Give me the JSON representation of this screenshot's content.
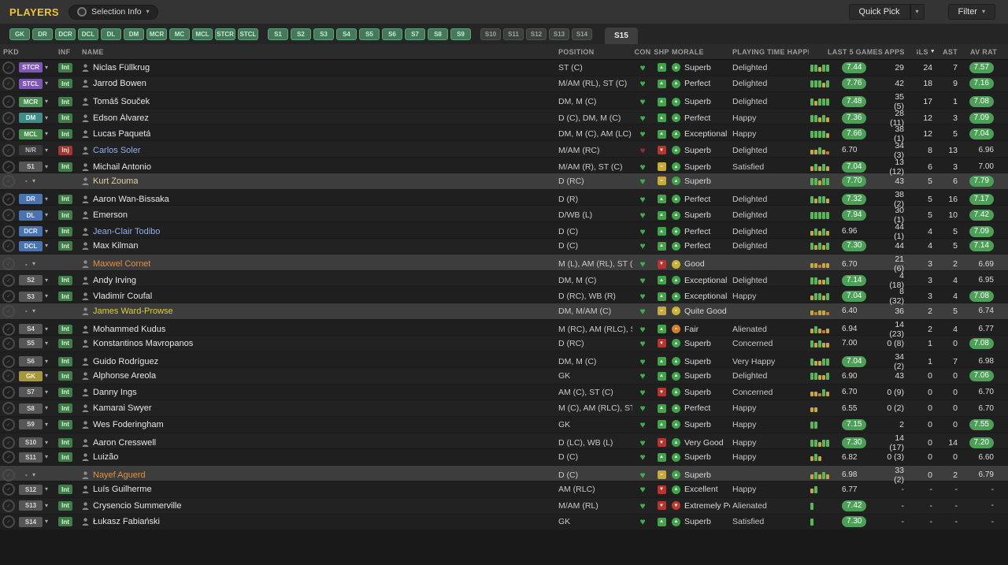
{
  "icons": {
    "caret": "▾",
    "check": "✓",
    "heart": "♥"
  },
  "colors": {
    "title_yellow": "#f2c230",
    "accent_green": "#4c9f56",
    "bar_green": "#58b858",
    "bar_yellow": "#c9a83c",
    "bar_orange": "#cc7a33",
    "heart_green": "#3fae4c",
    "heart_red": "#8f2f2f",
    "morale_green": "#3fa548",
    "morale_yellow": "#c9b236",
    "morale_orange": "#d08030",
    "morale_red": "#c03a2e"
  },
  "topbar": {
    "title": "PLAYERS",
    "selection_info": "Selection Info",
    "quick_pick": "Quick Pick",
    "filter": "Filter"
  },
  "tabs": {
    "positions": [
      "GK",
      "DR",
      "DCR",
      "DCL",
      "DL",
      "DM",
      "MCR",
      "MC",
      "MCL",
      "STCR",
      "STCL"
    ],
    "subs_active": [
      "S1",
      "S2",
      "S3",
      "S4",
      "S5",
      "S6",
      "S7",
      "S8",
      "S9"
    ],
    "subs_inactive": [
      "S10",
      "S11",
      "S12",
      "S13",
      "S14"
    ],
    "corner": "S15"
  },
  "table": {
    "sort_arrow": "▼",
    "columns": [
      {
        "label": "PKD"
      },
      {
        "label": "INF"
      },
      {
        "label": "NAME"
      },
      {
        "label": "POSITION"
      },
      {
        "label": "CON"
      },
      {
        "label": "SHP"
      },
      {
        "label": "MORALE"
      },
      {
        "label": "PLAYING TIME HAPPINESS"
      },
      {
        "label": "LAST 5 GAMES"
      },
      {
        "label": "APPS"
      },
      {
        "label": "GLS",
        "sorted": true
      },
      {
        "label": "AST"
      },
      {
        "label": "AV RAT"
      }
    ]
  },
  "players": [
    {
      "pkd": "STCR",
      "pkd_style": "purple",
      "inf": "Int",
      "inf_style": "g",
      "name": "Niclas Füllkrug",
      "name_style": "normal",
      "position": "ST (C)",
      "con": "g",
      "shp": "up",
      "morale": "Superb",
      "morale_style": "pos",
      "pth": "Delighted",
      "l5_bars": [
        "g",
        "g",
        "y",
        "g",
        "g"
      ],
      "l5": "7.44",
      "apps": "29",
      "gls": "24",
      "ast": "7",
      "av": "7.57",
      "hl": false
    },
    {
      "pkd": "STCL",
      "pkd_style": "purple",
      "inf": "Int",
      "inf_style": "g",
      "name": "Jarrod Bowen",
      "name_style": "normal",
      "position": "M/AM (RL), ST (C)",
      "con": "g",
      "shp": "up",
      "morale": "Perfect",
      "morale_style": "pos",
      "pth": "Delighted",
      "l5_bars": [
        "g",
        "g",
        "g",
        "y",
        "g"
      ],
      "l5": "7.76",
      "apps": "42",
      "gls": "18",
      "ast": "9",
      "av": "7.16",
      "hl": false
    },
    {
      "pkd": "MCR",
      "pkd_style": "green",
      "inf": "Int",
      "inf_style": "g",
      "name": "Tomáš Souček",
      "name_style": "normal",
      "position": "DM, M (C)",
      "con": "g",
      "shp": "up",
      "morale": "Superb",
      "morale_style": "pos",
      "pth": "Delighted",
      "l5_bars": [
        "g",
        "y",
        "g",
        "g",
        "g"
      ],
      "l5": "7.48",
      "apps": "35 (5)",
      "gls": "17",
      "ast": "1",
      "av": "7.08",
      "hl": false
    },
    {
      "pkd": "DM",
      "pkd_style": "teal",
      "inf": "Int",
      "inf_style": "g",
      "name": "Edson Álvarez",
      "name_style": "normal",
      "position": "D (C), DM, M (C)",
      "con": "g",
      "shp": "up",
      "morale": "Perfect",
      "morale_style": "pos",
      "pth": "Happy",
      "l5_bars": [
        "g",
        "g",
        "y",
        "g",
        "y"
      ],
      "l5": "7.36",
      "apps": "28 (11)",
      "gls": "12",
      "ast": "3",
      "av": "7.09",
      "hl": false
    },
    {
      "pkd": "MCL",
      "pkd_style": "green",
      "inf": "Int",
      "inf_style": "g",
      "name": "Lucas Paquetá",
      "name_style": "normal",
      "position": "DM, M (C), AM (LC)",
      "con": "g",
      "shp": "up",
      "morale": "Exceptional",
      "morale_style": "pos",
      "pth": "Happy",
      "l5_bars": [
        "g",
        "g",
        "g",
        "g",
        "y"
      ],
      "l5": "7.66",
      "apps": "38 (1)",
      "gls": "12",
      "ast": "5",
      "av": "7.04",
      "hl": false
    },
    {
      "pkd": "N/R",
      "pkd_style": "nr",
      "inf": "Inj",
      "inf_style": "r",
      "name": "Carlos Soler",
      "name_style": "loan",
      "position": "M/AM (RC)",
      "con": "r",
      "shp": "down",
      "morale": "Superb",
      "morale_style": "pos",
      "pth": "Delighted",
      "l5_bars": [
        "y",
        "y",
        "g",
        "y",
        "o"
      ],
      "l5": "6.70",
      "apps": "34 (3)",
      "gls": "8",
      "ast": "13",
      "av": "6.96",
      "hl": false
    },
    {
      "pkd": "S1",
      "pkd_style": "sub",
      "inf": "Int",
      "inf_style": "g",
      "name": "Michail Antonio",
      "name_style": "normal",
      "position": "M/AM (R), ST (C)",
      "con": "g",
      "shp": "eq",
      "morale": "Superb",
      "morale_style": "pos",
      "pth": "Satisfied",
      "l5_bars": [
        "y",
        "g",
        "y",
        "g",
        "y"
      ],
      "l5": "7.04",
      "apps": "13 (12)",
      "gls": "6",
      "ast": "3",
      "av": "7.00",
      "hl": false
    },
    {
      "pkd": "-",
      "pkd_style": "none",
      "inf": "",
      "inf_style": "",
      "name": "Kurt Zouma",
      "name_style": "peach",
      "position": "D (RC)",
      "con": "g",
      "shp": "eq",
      "morale": "Superb",
      "morale_style": "pos",
      "pth": "",
      "l5_bars": [
        "g",
        "g",
        "y",
        "g",
        "g"
      ],
      "l5": "7.70",
      "apps": "43",
      "gls": "5",
      "ast": "6",
      "av": "7.79",
      "hl": true
    },
    {
      "pkd": "DR",
      "pkd_style": "blue",
      "inf": "Int",
      "inf_style": "g",
      "name": "Aaron Wan-Bissaka",
      "name_style": "normal",
      "position": "D (R)",
      "con": "g",
      "shp": "up",
      "morale": "Perfect",
      "morale_style": "pos",
      "pth": "Delighted",
      "l5_bars": [
        "g",
        "y",
        "g",
        "g",
        "y"
      ],
      "l5": "7.32",
      "apps": "38 (2)",
      "gls": "5",
      "ast": "16",
      "av": "7.17",
      "hl": false
    },
    {
      "pkd": "DL",
      "pkd_style": "blue",
      "inf": "Int",
      "inf_style": "g",
      "name": "Emerson",
      "name_style": "normal",
      "position": "D/WB (L)",
      "con": "g",
      "shp": "up",
      "morale": "Superb",
      "morale_style": "pos",
      "pth": "Delighted",
      "l5_bars": [
        "g",
        "g",
        "g",
        "g",
        "g"
      ],
      "l5": "7.94",
      "apps": "30 (1)",
      "gls": "5",
      "ast": "10",
      "av": "7.42",
      "hl": false
    },
    {
      "pkd": "DCR",
      "pkd_style": "blue",
      "inf": "Int",
      "inf_style": "g",
      "name": "Jean-Clair Todibo",
      "name_style": "loan",
      "position": "D (C)",
      "con": "g",
      "shp": "up",
      "morale": "Perfect",
      "morale_style": "pos",
      "pth": "Delighted",
      "l5_bars": [
        "y",
        "g",
        "y",
        "g",
        "y"
      ],
      "l5": "6.96",
      "apps": "44 (1)",
      "gls": "4",
      "ast": "5",
      "av": "7.09",
      "hl": false
    },
    {
      "pkd": "DCL",
      "pkd_style": "blue",
      "inf": "Int",
      "inf_style": "g",
      "name": "Max Kilman",
      "name_style": "normal",
      "position": "D (C)",
      "con": "g",
      "shp": "up",
      "morale": "Perfect",
      "morale_style": "pos",
      "pth": "Delighted",
      "l5_bars": [
        "g",
        "y",
        "g",
        "y",
        "g"
      ],
      "l5": "7.30",
      "apps": "44",
      "gls": "4",
      "ast": "5",
      "av": "7.14",
      "hl": false
    },
    {
      "pkd": "-",
      "pkd_style": "none",
      "inf": "",
      "inf_style": "",
      "name": "Maxwel Cornet",
      "name_style": "orange",
      "position": "M (L), AM (RL), ST (C)",
      "con": "g",
      "shp": "down",
      "morale": "Good",
      "morale_style": "mid",
      "pth": "",
      "l5_bars": [
        "y",
        "y",
        "o",
        "y",
        "y"
      ],
      "l5": "6.70",
      "apps": "21 (6)",
      "gls": "3",
      "ast": "2",
      "av": "6.69",
      "hl": true
    },
    {
      "pkd": "S2",
      "pkd_style": "sub",
      "inf": "Int",
      "inf_style": "g",
      "name": "Andy Irving",
      "name_style": "normal",
      "position": "DM, M (C)",
      "con": "g",
      "shp": "up",
      "morale": "Exceptional",
      "morale_style": "pos",
      "pth": "Delighted",
      "l5_bars": [
        "g",
        "g",
        "y",
        "y",
        "g"
      ],
      "l5": "7.14",
      "apps": "4 (18)",
      "gls": "3",
      "ast": "4",
      "av": "6.95",
      "hl": false
    },
    {
      "pkd": "S3",
      "pkd_style": "sub",
      "inf": "Int",
      "inf_style": "g",
      "name": "Vladimír Coufal",
      "name_style": "normal",
      "position": "D (RC), WB (R)",
      "con": "g",
      "shp": "up",
      "morale": "Exceptional",
      "morale_style": "pos",
      "pth": "Happy",
      "l5_bars": [
        "y",
        "g",
        "g",
        "y",
        "g"
      ],
      "l5": "7.04",
      "apps": "8 (32)",
      "gls": "3",
      "ast": "4",
      "av": "7.08",
      "hl": false
    },
    {
      "pkd": "-",
      "pkd_style": "none",
      "inf": "",
      "inf_style": "",
      "name": "James Ward-Prowse",
      "name_style": "yellow",
      "position": "DM, M/AM (C)",
      "con": "g",
      "shp": "eq",
      "morale": "Quite Good",
      "morale_style": "mid",
      "pth": "",
      "l5_bars": [
        "y",
        "o",
        "y",
        "y",
        "o"
      ],
      "l5": "6.40",
      "apps": "36",
      "gls": "2",
      "ast": "5",
      "av": "6.74",
      "hl": true
    },
    {
      "pkd": "S4",
      "pkd_style": "sub",
      "inf": "Int",
      "inf_style": "g",
      "name": "Mohammed Kudus",
      "name_style": "normal",
      "position": "M (RC), AM (RLC), ST...",
      "con": "g",
      "shp": "up",
      "morale": "Fair",
      "morale_style": "fair",
      "pth": "Alienated",
      "l5_bars": [
        "y",
        "g",
        "y",
        "o",
        "y"
      ],
      "l5": "6.94",
      "apps": "14 (23)",
      "gls": "2",
      "ast": "4",
      "av": "6.77",
      "hl": false
    },
    {
      "pkd": "S5",
      "pkd_style": "sub",
      "inf": "Int",
      "inf_style": "g",
      "name": "Konstantinos Mavropanos",
      "name_style": "normal",
      "position": "D (RC)",
      "con": "g",
      "shp": "down",
      "morale": "Superb",
      "morale_style": "pos",
      "pth": "Concerned",
      "l5_bars": [
        "g",
        "y",
        "g",
        "y",
        "y"
      ],
      "l5": "7.00",
      "apps": "0 (8)",
      "gls": "1",
      "ast": "0",
      "av": "7.08",
      "hl": false
    },
    {
      "pkd": "S6",
      "pkd_style": "sub",
      "inf": "Int",
      "inf_style": "g",
      "name": "Guido Rodríguez",
      "name_style": "normal",
      "position": "DM, M (C)",
      "con": "g",
      "shp": "up",
      "morale": "Superb",
      "morale_style": "pos",
      "pth": "Very Happy",
      "l5_bars": [
        "g",
        "y",
        "y",
        "g",
        "g"
      ],
      "l5": "7.04",
      "apps": "34 (2)",
      "gls": "1",
      "ast": "7",
      "av": "6.98",
      "hl": false
    },
    {
      "pkd": "GK",
      "pkd_style": "yellow",
      "inf": "Int",
      "inf_style": "g",
      "name": "Alphonse Areola",
      "name_style": "normal",
      "position": "GK",
      "con": "g",
      "shp": "up",
      "morale": "Superb",
      "morale_style": "pos",
      "pth": "Delighted",
      "l5_bars": [
        "g",
        "g",
        "y",
        "y",
        "g"
      ],
      "l5": "6.90",
      "apps": "43",
      "gls": "0",
      "ast": "0",
      "av": "7.06",
      "hl": false
    },
    {
      "pkd": "S7",
      "pkd_style": "sub",
      "inf": "Int",
      "inf_style": "g",
      "name": "Danny Ings",
      "name_style": "normal",
      "position": "AM (C), ST (C)",
      "con": "g",
      "shp": "down",
      "morale": "Superb",
      "morale_style": "pos",
      "pth": "Concerned",
      "l5_bars": [
        "y",
        "y",
        "o",
        "g",
        "y"
      ],
      "l5": "6.70",
      "apps": "0 (9)",
      "gls": "0",
      "ast": "0",
      "av": "6.70",
      "hl": false
    },
    {
      "pkd": "S8",
      "pkd_style": "sub",
      "inf": "Int",
      "inf_style": "g",
      "name": "Kamarai Swyer",
      "name_style": "normal",
      "position": "M (C), AM (RLC), ST (C)",
      "con": "g",
      "shp": "up",
      "morale": "Perfect",
      "morale_style": "pos",
      "pth": "Happy",
      "l5_bars": [
        "y",
        "y"
      ],
      "l5": "6.55",
      "apps": "0 (2)",
      "gls": "0",
      "ast": "0",
      "av": "6.70",
      "hl": false
    },
    {
      "pkd": "S9",
      "pkd_style": "sub",
      "inf": "Int",
      "inf_style": "g",
      "name": "Wes Foderingham",
      "name_style": "normal",
      "position": "GK",
      "con": "g",
      "shp": "up",
      "morale": "Superb",
      "morale_style": "pos",
      "pth": "Happy",
      "l5_bars": [
        "g",
        "g"
      ],
      "l5": "7.15",
      "apps": "2",
      "gls": "0",
      "ast": "0",
      "av": "7.55",
      "hl": false
    },
    {
      "pkd": "S10",
      "pkd_style": "sub",
      "inf": "Int",
      "inf_style": "g",
      "name": "Aaron Cresswell",
      "name_style": "normal",
      "position": "D (LC), WB (L)",
      "con": "g",
      "shp": "down",
      "morale": "Very Good",
      "morale_style": "pos",
      "pth": "Happy",
      "l5_bars": [
        "g",
        "g",
        "y",
        "g",
        "g"
      ],
      "l5": "7.30",
      "apps": "14 (17)",
      "gls": "0",
      "ast": "14",
      "av": "7.20",
      "hl": false
    },
    {
      "pkd": "S11",
      "pkd_style": "sub",
      "inf": "Int",
      "inf_style": "g",
      "name": "Luizão",
      "name_style": "normal",
      "position": "D (C)",
      "con": "g",
      "shp": "up",
      "morale": "Superb",
      "morale_style": "pos",
      "pth": "Happy",
      "l5_bars": [
        "y",
        "g",
        "y"
      ],
      "l5": "6.82",
      "apps": "0 (3)",
      "gls": "0",
      "ast": "0",
      "av": "6.60",
      "hl": false
    },
    {
      "pkd": "-",
      "pkd_style": "none",
      "inf": "",
      "inf_style": "",
      "name": "Nayef Aguerd",
      "name_style": "orange",
      "position": "D (C)",
      "con": "g",
      "shp": "eq",
      "morale": "Superb",
      "morale_style": "pos",
      "pth": "",
      "l5_bars": [
        "y",
        "g",
        "y",
        "g",
        "y"
      ],
      "l5": "6.98",
      "apps": "33 (2)",
      "gls": "0",
      "ast": "2",
      "av": "6.79",
      "hl": true
    },
    {
      "pkd": "S12",
      "pkd_style": "sub",
      "inf": "Int",
      "inf_style": "g",
      "name": "Luís Guilherme",
      "name_style": "normal",
      "position": "AM (RLC)",
      "con": "g",
      "shp": "down",
      "morale": "Excellent",
      "morale_style": "pos",
      "pth": "Happy",
      "l5_bars": [
        "y",
        "g"
      ],
      "l5": "6.77",
      "apps": "-",
      "gls": "-",
      "ast": "-",
      "av": "-",
      "hl": false
    },
    {
      "pkd": "S13",
      "pkd_style": "sub",
      "inf": "Int",
      "inf_style": "g",
      "name": "Crysencio Summerville",
      "name_style": "normal",
      "position": "M/AM (RL)",
      "con": "g",
      "shp": "down",
      "morale": "Extremely Poor",
      "morale_style": "neg",
      "pth": "Alienated",
      "l5_bars": [
        "g"
      ],
      "l5": "7.42",
      "apps": "-",
      "gls": "-",
      "ast": "-",
      "av": "-",
      "hl": false
    },
    {
      "pkd": "S14",
      "pkd_style": "sub",
      "inf": "Int",
      "inf_style": "g",
      "name": "Łukasz Fabiański",
      "name_style": "normal",
      "position": "GK",
      "con": "g",
      "shp": "up",
      "morale": "Superb",
      "morale_style": "pos",
      "pth": "Satisfied",
      "l5_bars": [
        "g"
      ],
      "l5": "7.30",
      "apps": "-",
      "gls": "-",
      "ast": "-",
      "av": "-",
      "hl": false
    }
  ]
}
